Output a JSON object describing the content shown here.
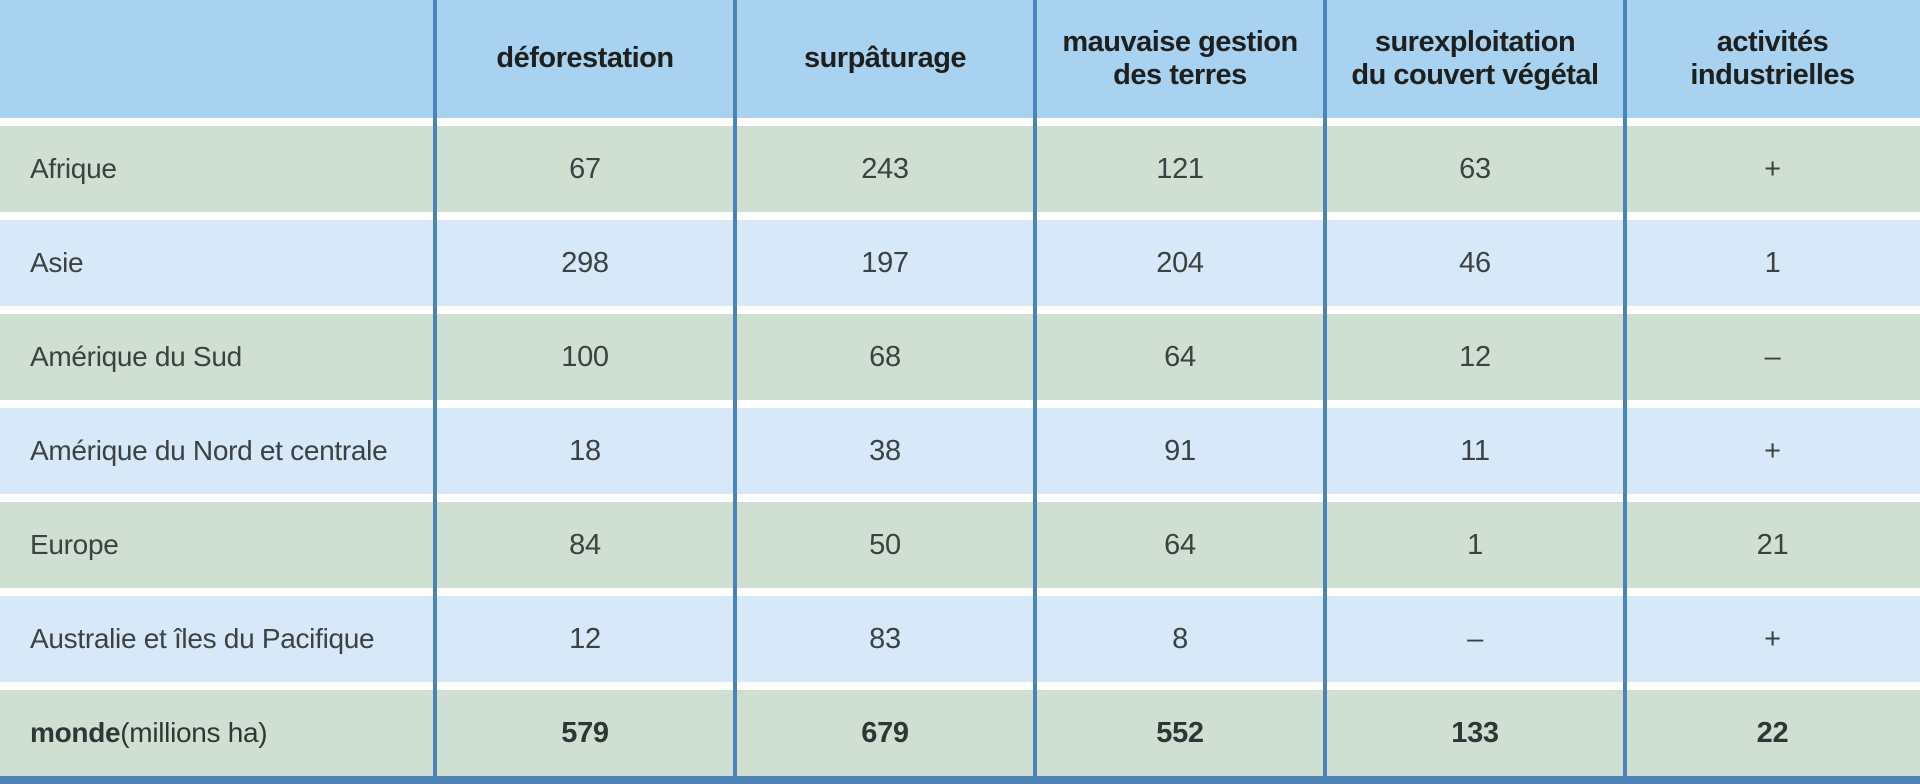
{
  "table": {
    "header": [
      "",
      "déforestation",
      "surpâturage",
      "mauvaise gestion\ndes terres",
      "surexploitation\ndu couvert végétal",
      "activités\nindustrielles"
    ],
    "rows": [
      {
        "label": "Afrique",
        "cells": [
          "67",
          "243",
          "121",
          "63",
          "+"
        ]
      },
      {
        "label": "Asie",
        "cells": [
          "298",
          "197",
          "204",
          "46",
          "1"
        ]
      },
      {
        "label": "Amérique du Sud",
        "cells": [
          "100",
          "68",
          "64",
          "12",
          "–"
        ]
      },
      {
        "label": "Amérique du Nord et centrale",
        "cells": [
          "18",
          "38",
          "91",
          "11",
          "+"
        ]
      },
      {
        "label": "Europe",
        "cells": [
          "84",
          "50",
          "64",
          "1",
          "21"
        ]
      },
      {
        "label": "Australie et îles du Pacifique",
        "cells": [
          "12",
          "83",
          "8",
          "–",
          "+"
        ]
      },
      {
        "label_bold": "monde",
        "label_normal": " (millions ha)",
        "cells": [
          "579",
          "679",
          "552",
          "133",
          "22"
        ]
      }
    ]
  },
  "colors": {
    "header_bg": "#a8d2f0",
    "row_green": "#cfe0d2",
    "row_blue": "#d7e8f9",
    "grid_line": "#4d84b8",
    "separator": "#ffffff",
    "header_text": "#1e1f1f",
    "cell_text": "#3c4142"
  },
  "chart_data": {
    "type": "table",
    "unit": "millions ha",
    "columns": [
      "déforestation",
      "surpâturage",
      "mauvaise gestion des terres",
      "surexploitation du couvert végétal",
      "activités industrielles"
    ],
    "rows": [
      {
        "region": "Afrique",
        "values": [
          67,
          243,
          121,
          63,
          "+"
        ]
      },
      {
        "region": "Asie",
        "values": [
          298,
          197,
          204,
          46,
          1
        ]
      },
      {
        "region": "Amérique du Sud",
        "values": [
          100,
          68,
          64,
          12,
          "–"
        ]
      },
      {
        "region": "Amérique du Nord et centrale",
        "values": [
          18,
          38,
          91,
          11,
          "+"
        ]
      },
      {
        "region": "Europe",
        "values": [
          84,
          50,
          64,
          1,
          21
        ]
      },
      {
        "region": "Australie et îles du Pacifique",
        "values": [
          12,
          83,
          8,
          "–",
          "+"
        ]
      },
      {
        "region": "monde (millions ha)",
        "values": [
          579,
          679,
          552,
          133,
          22
        ]
      }
    ]
  }
}
